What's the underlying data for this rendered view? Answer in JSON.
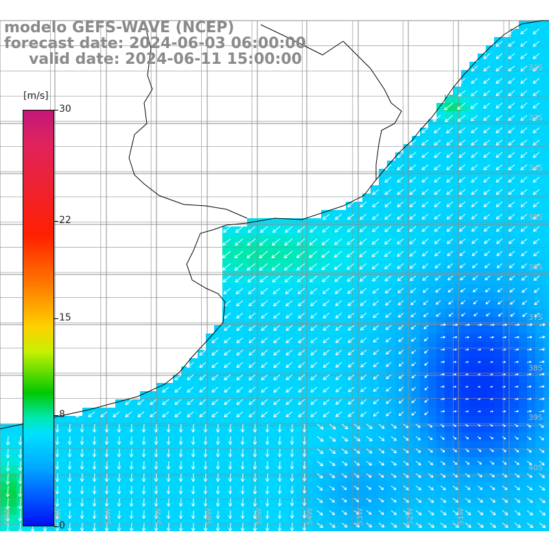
{
  "header": {
    "line1": "modelo GEFS-WAVE (NCEP)",
    "line2": "forecast date: 2024-06-03 06:00:00",
    "line3": "valid date: 2024-06-11 15:00:00"
  },
  "colorbar": {
    "units": "[m/s]",
    "ticks": [
      {
        "value": 30,
        "label": "30"
      },
      {
        "value": 22,
        "label": "22"
      },
      {
        "value": 15,
        "label": "15"
      },
      {
        "value": 8,
        "label": "8"
      },
      {
        "value": 0,
        "label": "0"
      }
    ],
    "range": [
      0,
      30
    ],
    "scale": [
      "#0010f0",
      "#0050ff",
      "#00a8ff",
      "#00e0ff",
      "#00e8b0",
      "#00c800",
      "#c8f000",
      "#ffd000",
      "#ff7a00",
      "#ff2000",
      "#e0235c",
      "#c2187a"
    ]
  },
  "map": {
    "lat_labels": [
      "32S",
      "33S",
      "34S",
      "35S",
      "36S",
      "37S",
      "38S",
      "39S",
      "40S"
    ],
    "lon_labels": [
      "60W",
      "59W",
      "58W",
      "57W",
      "56W",
      "55W",
      "54W",
      "53W",
      "52W",
      "51W"
    ],
    "colors": {
      "land": "#ffffff",
      "grid": "#8c8c8c",
      "coast": "#000000",
      "arrow": "#ffffff",
      "label": "#b8b8b8"
    }
  }
}
